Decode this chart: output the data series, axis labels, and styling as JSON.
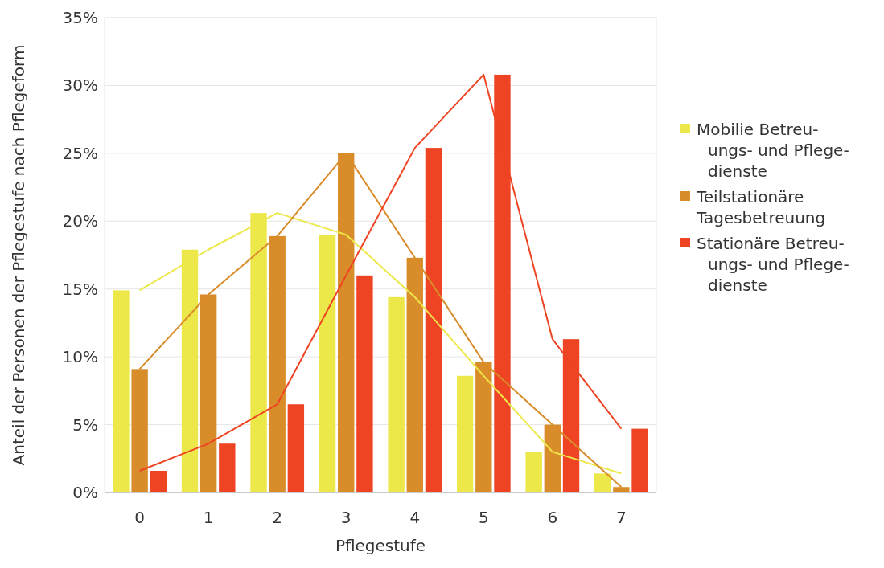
{
  "chart_data": {
    "type": "bar",
    "xlabel": "Pflegestufe",
    "ylabel": "Anteil der Personen der Pflegestufe nach Pflegeform",
    "categories": [
      "0",
      "1",
      "2",
      "3",
      "4",
      "5",
      "6",
      "7"
    ],
    "series": [
      {
        "name": "Mobilie Betreu-\nungs- und Pflege-\ndienste",
        "color": "#ede84a",
        "values": [
          14.9,
          17.9,
          20.6,
          19.0,
          14.4,
          8.6,
          3.0,
          1.4
        ]
      },
      {
        "name": "Teilstationäre\nTagesbetreuung",
        "color": "#d98c2a",
        "values": [
          9.1,
          14.6,
          18.9,
          25.0,
          17.3,
          9.6,
          5.0,
          0.4
        ]
      },
      {
        "name": "Stationäre Betreu-\nungs- und Pflege-\ndienste",
        "color": "#ee4423",
        "values": [
          1.6,
          3.6,
          6.5,
          16.0,
          25.4,
          30.8,
          11.3,
          4.7
        ]
      },
      {
        "type": "line",
        "color": "#ede84a",
        "values": [
          14.9,
          17.9,
          20.6,
          19.0,
          14.4,
          8.6,
          3.0,
          1.4
        ]
      },
      {
        "type": "line",
        "color": "#d98c2a",
        "values": [
          9.1,
          14.6,
          18.9,
          25.0,
          17.3,
          9.6,
          5.0,
          0.4
        ]
      },
      {
        "type": "line",
        "color": "#ee4423",
        "values": [
          1.6,
          3.6,
          6.5,
          16.0,
          25.4,
          30.8,
          11.3,
          4.7
        ]
      }
    ],
    "ylim": [
      0,
      35
    ],
    "yticks": [
      {
        "value": 0,
        "label": "0%"
      },
      {
        "value": 5,
        "label": "5%"
      },
      {
        "value": 10,
        "label": "10%"
      },
      {
        "value": 15,
        "label": "15%"
      },
      {
        "value": 20,
        "label": "20%"
      },
      {
        "value": 25,
        "label": "25%"
      },
      {
        "value": 30,
        "label": "30%"
      },
      {
        "value": 35,
        "label": "35%"
      }
    ],
    "grid": "y",
    "legend": "right",
    "marker": "none",
    "line_style": "solid"
  }
}
